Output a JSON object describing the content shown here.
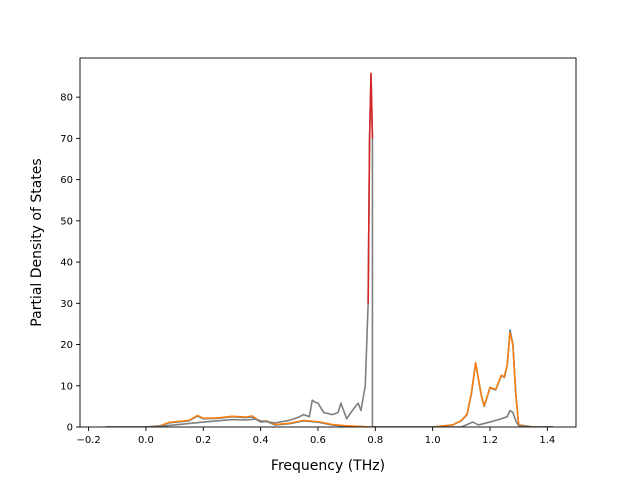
{
  "chart_data": {
    "type": "line",
    "title": "",
    "xlabel": "Frequency (THz)",
    "ylabel": "Partial Density of States",
    "xlim": [
      -0.23,
      1.5
    ],
    "ylim": [
      0,
      89.5
    ],
    "xticks": [
      -0.2,
      0.0,
      0.2,
      0.4,
      0.6,
      0.8,
      1.0,
      1.2,
      1.4
    ],
    "xtick_labels": [
      "−0.2",
      "0.0",
      "0.2",
      "0.4",
      "0.6",
      "0.8",
      "1.0",
      "1.2",
      "1.4"
    ],
    "yticks": [
      0,
      10,
      20,
      30,
      40,
      50,
      60,
      70,
      80
    ],
    "ytick_labels": [
      "0",
      "10",
      "20",
      "30",
      "40",
      "50",
      "60",
      "70",
      "80"
    ],
    "grid": false,
    "legend": "none",
    "series": [
      {
        "color": "#1f77b4",
        "x": [
          -0.14,
          0.0,
          0.05,
          0.08,
          0.15,
          0.18,
          0.2,
          0.25,
          0.3,
          0.35,
          0.37,
          0.4,
          0.42,
          0.45,
          0.5,
          0.55,
          0.6,
          0.65,
          0.7,
          0.75,
          0.78,
          0.79,
          0.8,
          0.85,
          0.9,
          1.0,
          1.07,
          1.1,
          1.12,
          1.135,
          1.15,
          1.17,
          1.18,
          1.2,
          1.22,
          1.24,
          1.25,
          1.26,
          1.27,
          1.28,
          1.29,
          1.3,
          1.35,
          1.42
        ],
        "y": [
          0.0,
          0.0,
          0.3,
          1.0,
          1.5,
          2.7,
          2.0,
          2.1,
          2.5,
          2.3,
          2.5,
          1.2,
          1.4,
          0.5,
          0.8,
          1.5,
          1.2,
          0.5,
          0.2,
          0.1,
          0.0,
          0.0,
          0.0,
          0.0,
          0.0,
          0.0,
          0.5,
          1.5,
          3.0,
          8.0,
          15.5,
          7.5,
          5.0,
          9.5,
          9.0,
          12.5,
          12.0,
          15.0,
          23.5,
          20.0,
          8.0,
          0.5,
          0.0,
          0.0
        ]
      },
      {
        "color": "#ff7f0e",
        "x": [
          -0.14,
          0.0,
          0.05,
          0.08,
          0.15,
          0.18,
          0.2,
          0.25,
          0.3,
          0.35,
          0.37,
          0.4,
          0.42,
          0.45,
          0.5,
          0.55,
          0.6,
          0.65,
          0.7,
          0.75,
          0.78,
          0.79,
          0.8,
          0.85,
          0.9,
          1.0,
          1.07,
          1.1,
          1.12,
          1.135,
          1.15,
          1.17,
          1.18,
          1.2,
          1.22,
          1.24,
          1.25,
          1.26,
          1.27,
          1.28,
          1.29,
          1.3,
          1.35,
          1.42
        ],
        "y": [
          0.0,
          0.0,
          0.3,
          1.1,
          1.6,
          2.8,
          2.1,
          2.2,
          2.6,
          2.4,
          2.7,
          1.3,
          1.5,
          0.6,
          0.9,
          1.6,
          1.3,
          0.6,
          0.3,
          0.1,
          0.0,
          0.0,
          0.0,
          0.0,
          0.0,
          0.0,
          0.5,
          1.6,
          3.1,
          8.2,
          15.6,
          7.6,
          5.1,
          9.6,
          9.1,
          12.6,
          12.1,
          15.1,
          23.0,
          19.8,
          7.8,
          0.5,
          0.0,
          0.0
        ]
      },
      {
        "color": "#7f7f7f",
        "x": [
          -0.14,
          0.0,
          0.05,
          0.1,
          0.2,
          0.3,
          0.35,
          0.38,
          0.4,
          0.45,
          0.5,
          0.53,
          0.55,
          0.57,
          0.58,
          0.59,
          0.6,
          0.62,
          0.65,
          0.67,
          0.68,
          0.7,
          0.72,
          0.74,
          0.75,
          0.765,
          0.775,
          0.78,
          0.785,
          0.79,
          0.79,
          0.8,
          0.9,
          1.0,
          1.1,
          1.14,
          1.16,
          1.2,
          1.24,
          1.26,
          1.27,
          1.28,
          1.29,
          1.3,
          1.35,
          1.42
        ],
        "y": [
          0.0,
          0.0,
          0.2,
          0.5,
          1.2,
          1.8,
          1.7,
          1.9,
          1.5,
          1.0,
          1.6,
          2.3,
          3.0,
          2.5,
          6.5,
          6.0,
          5.8,
          3.5,
          3.0,
          3.5,
          5.8,
          2.0,
          4.0,
          5.8,
          4.0,
          10.0,
          30.0,
          70.0,
          85.5,
          70.0,
          0.0,
          0.0,
          0.0,
          0.0,
          0.0,
          1.2,
          0.5,
          1.2,
          2.0,
          2.5,
          4.0,
          3.5,
          1.5,
          0.3,
          0.0,
          0.0
        ]
      },
      {
        "color": "#d62728",
        "x": [
          0.775,
          0.78,
          0.785,
          0.79
        ],
        "y": [
          30.0,
          70.0,
          85.8,
          70.0
        ]
      }
    ]
  }
}
